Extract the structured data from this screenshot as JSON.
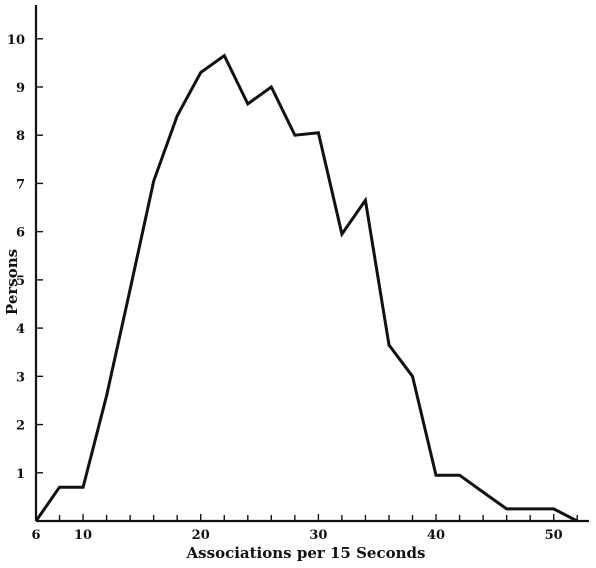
{
  "chart_data": {
    "type": "line",
    "title": "",
    "xlabel": "Associations per 15 Seconds",
    "ylabel": "Persons",
    "xlim": [
      6,
      53
    ],
    "ylim": [
      0,
      10.7
    ],
    "x_tick_labels": [
      "6",
      "10",
      "20",
      "30",
      "40",
      "50"
    ],
    "x_tick_values": [
      6,
      10,
      20,
      30,
      40,
      50
    ],
    "x_minor_ticks": [
      8,
      12,
      14,
      16,
      18,
      22,
      24,
      26,
      28,
      32,
      34,
      36,
      38,
      42,
      44,
      46,
      48,
      52
    ],
    "y_tick_labels": [
      "1",
      "2",
      "3",
      "4",
      "5",
      "6",
      "7",
      "8",
      "9",
      "10"
    ],
    "y_tick_values": [
      1,
      2,
      3,
      4,
      5,
      6,
      7,
      8,
      9,
      10
    ],
    "grid": false,
    "series": [
      {
        "x": [
          6,
          8,
          10,
          12,
          14,
          16,
          18,
          20,
          22,
          24,
          26,
          28,
          30,
          32,
          34,
          36,
          38,
          40,
          42,
          44,
          46,
          48,
          50,
          52
        ],
        "y": [
          0,
          0.7,
          0.7,
          2.6,
          4.8,
          7.05,
          8.4,
          9.3,
          9.65,
          8.65,
          9.0,
          8.0,
          8.05,
          5.95,
          6.65,
          3.65,
          3.0,
          0.95,
          0.95,
          0.6,
          0.25,
          0.25,
          0.25,
          0
        ]
      }
    ],
    "color": "#111111"
  }
}
